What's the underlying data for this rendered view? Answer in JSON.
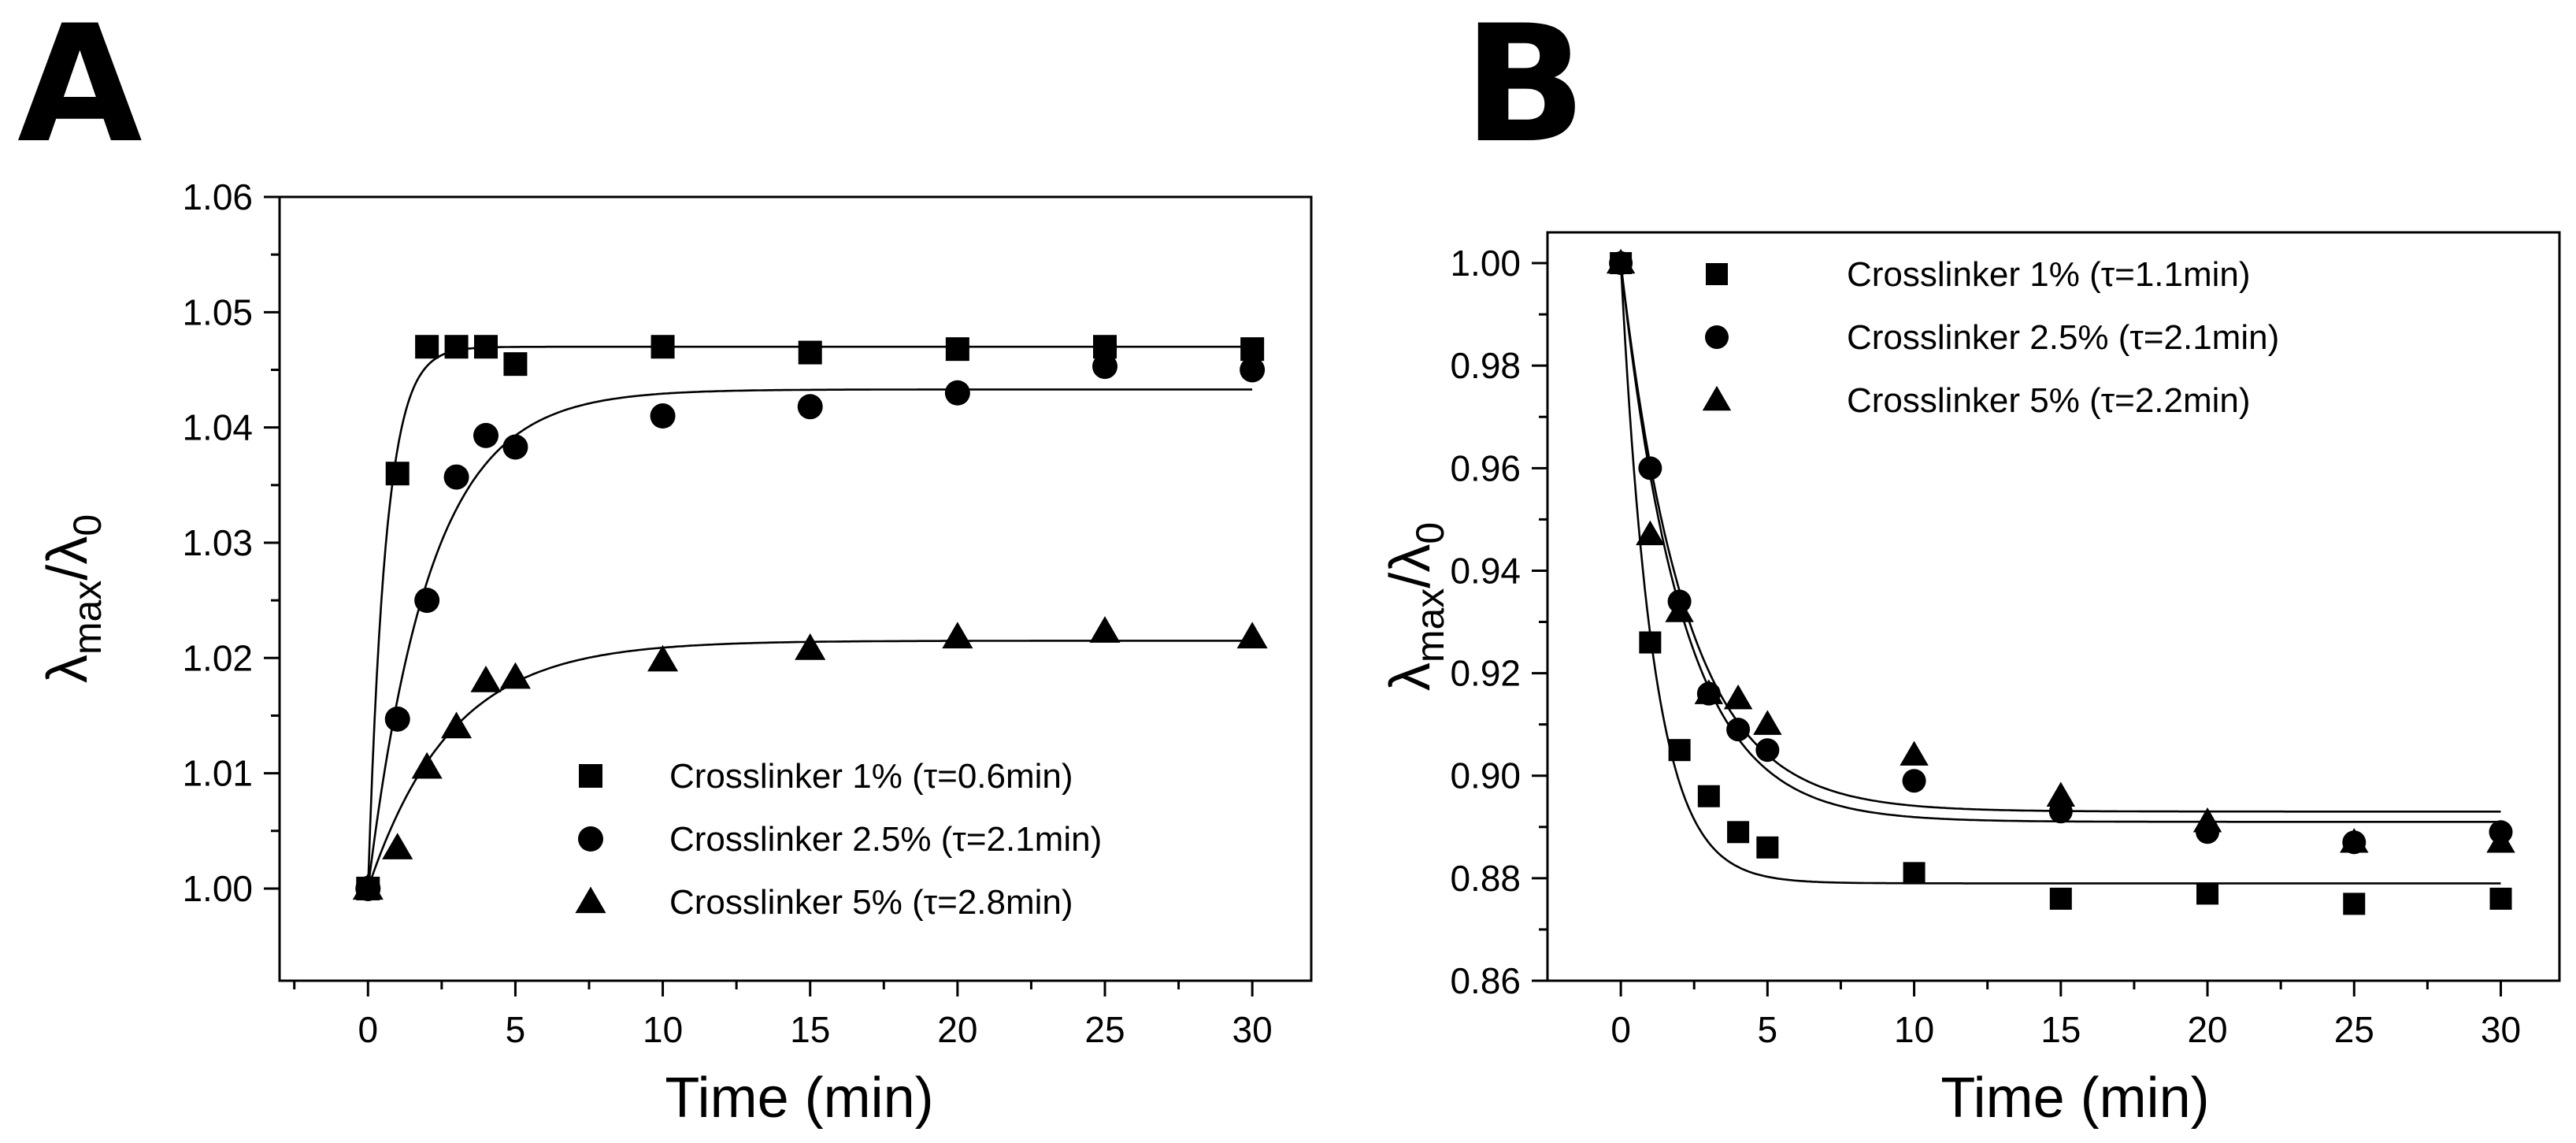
{
  "panels": [
    {
      "id": "A",
      "letter": "A",
      "xlabel": "Time (min)",
      "ylabel_main": "λ",
      "ylabel_sub1": "max",
      "ylabel_slash": "/λ",
      "ylabel_sub2": "0"
    },
    {
      "id": "B",
      "letter": "B",
      "xlabel": "Time (min)",
      "ylabel_main": "λ",
      "ylabel_sub1": "max",
      "ylabel_slash": "/λ",
      "ylabel_sub2": "0"
    }
  ],
  "chart_data": [
    {
      "type": "scatter",
      "panel": "A",
      "xlabel": "Time (min)",
      "ylabel": "λmax/λ0",
      "xlim": [
        -3,
        32
      ],
      "ylim": [
        0.992,
        1.06
      ],
      "xticks": [
        0,
        5,
        10,
        15,
        20,
        25,
        30
      ],
      "yticks": [
        1.0,
        1.01,
        1.02,
        1.03,
        1.04,
        1.05,
        1.06
      ],
      "ytick_labels": [
        "1.00",
        "1.01",
        "1.02",
        "1.03",
        "1.04",
        "1.05",
        "1.06"
      ],
      "legend_position": "bottom-right",
      "series": [
        {
          "name": "Crosslinker 1% (τ=0.6min)",
          "marker": "square",
          "x": [
            0,
            1,
            2,
            3,
            4,
            5,
            10,
            15,
            20,
            25,
            30
          ],
          "y": [
            1.0,
            1.036,
            1.047,
            1.047,
            1.047,
            1.0455,
            1.047,
            1.0465,
            1.0468,
            1.047,
            1.0468
          ],
          "fit": {
            "y0": 1.0,
            "plateau": 1.047,
            "tau": 0.6
          }
        },
        {
          "name": "Crosslinker 2.5% (τ=2.1min)",
          "marker": "circle",
          "x": [
            0,
            1,
            2,
            3,
            4,
            5,
            10,
            15,
            20,
            25,
            30
          ],
          "y": [
            1.0,
            1.0147,
            1.025,
            1.0357,
            1.0393,
            1.0383,
            1.041,
            1.0418,
            1.043,
            1.0453,
            1.045
          ],
          "fit": {
            "y0": 1.0,
            "plateau": 1.0433,
            "tau": 2.1
          }
        },
        {
          "name": "Crosslinker 5% (τ=2.8min)",
          "marker": "triangle",
          "x": [
            0,
            1,
            2,
            3,
            4,
            5,
            10,
            15,
            20,
            25,
            30
          ],
          "y": [
            1.0,
            1.0035,
            1.0105,
            1.014,
            1.018,
            1.0183,
            1.0198,
            1.0208,
            1.0218,
            1.0223,
            1.0218
          ],
          "fit": {
            "y0": 1.0,
            "plateau": 1.0215,
            "tau": 2.8
          }
        }
      ]
    },
    {
      "type": "scatter",
      "panel": "B",
      "xlabel": "Time (min)",
      "ylabel": "λmax/λ0",
      "xlim": [
        -2.5,
        32
      ],
      "ylim": [
        0.86,
        1.006
      ],
      "xticks": [
        0,
        5,
        10,
        15,
        20,
        25,
        30
      ],
      "yticks": [
        0.86,
        0.88,
        0.9,
        0.92,
        0.94,
        0.96,
        0.98,
        1.0
      ],
      "ytick_labels": [
        "0.86",
        "0.88",
        "0.90",
        "0.92",
        "0.94",
        "0.96",
        "0.98",
        "1.00"
      ],
      "legend_position": "top-right",
      "series": [
        {
          "name": "Crosslinker 1% (τ=1.1min)",
          "marker": "square",
          "x": [
            0,
            1,
            2,
            3,
            4,
            5,
            10,
            15,
            20,
            25,
            30
          ],
          "y": [
            1.0,
            0.926,
            0.905,
            0.896,
            0.889,
            0.886,
            0.881,
            0.876,
            0.877,
            0.875,
            0.876
          ],
          "fit": {
            "y0": 1.0,
            "plateau": 0.879,
            "tau": 1.1
          }
        },
        {
          "name": "Crosslinker 2.5% (τ=2.1min)",
          "marker": "circle",
          "x": [
            0,
            1,
            2,
            3,
            4,
            5,
            10,
            15,
            20,
            25,
            30
          ],
          "y": [
            1.0,
            0.96,
            0.934,
            0.916,
            0.909,
            0.905,
            0.899,
            0.893,
            0.889,
            0.887,
            0.889
          ],
          "fit": {
            "y0": 1.0,
            "plateau": 0.891,
            "tau": 2.1
          }
        },
        {
          "name": "Crosslinker 5% (τ=2.2min)",
          "marker": "triangle",
          "x": [
            0,
            1,
            2,
            3,
            4,
            5,
            10,
            15,
            20,
            25,
            30
          ],
          "y": [
            1.0,
            0.947,
            0.932,
            0.916,
            0.915,
            0.91,
            0.904,
            0.896,
            0.891,
            0.887,
            0.887
          ],
          "fit": {
            "y0": 1.0,
            "plateau": 0.893,
            "tau": 2.2
          }
        }
      ]
    }
  ]
}
